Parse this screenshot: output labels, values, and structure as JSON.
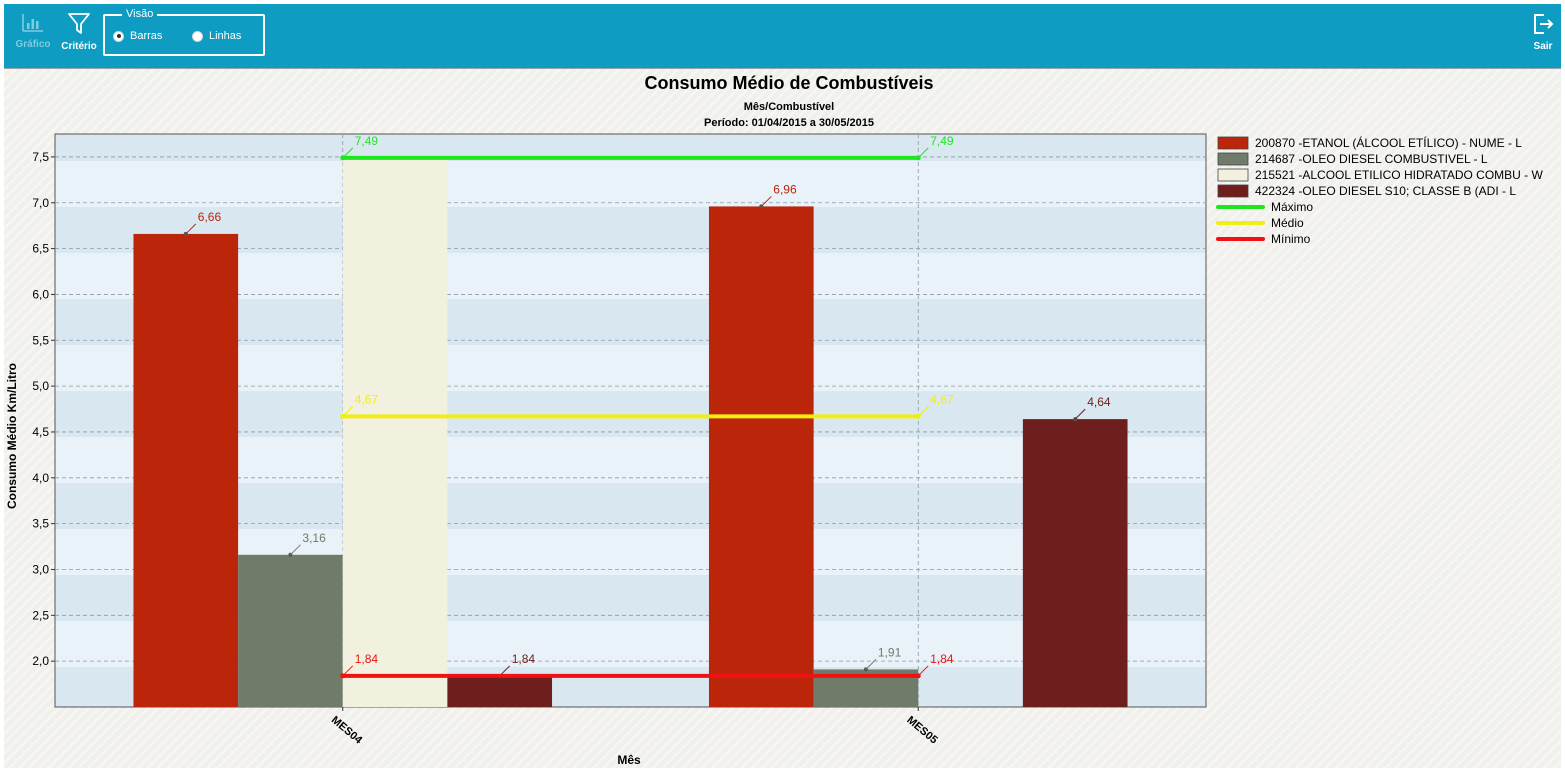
{
  "toolbar": {
    "grafico_label": "Gráfico",
    "criterio_label": "Critério",
    "sair_label": "Sair",
    "visao": {
      "legend": "Visão",
      "options": [
        {
          "label": "Barras",
          "selected": true
        },
        {
          "label": "Linhas",
          "selected": false
        }
      ]
    }
  },
  "chart_data": {
    "type": "bar",
    "title": "Consumo Médio de Combustíveis",
    "subtitle": "Mês/Combustível",
    "period": "Período: 01/04/2015 a 30/05/2015",
    "xlabel": "Mês",
    "ylabel": "Consumo Médio Km/Litro",
    "ylim": [
      1.5,
      7.75
    ],
    "yticks": [
      "2,0",
      "2,5",
      "3,0",
      "3,5",
      "4,0",
      "4,5",
      "5,0",
      "5,5",
      "6,0",
      "6,5",
      "7,0",
      "7,5"
    ],
    "categories": [
      "MES04",
      "MES05"
    ],
    "grid": true,
    "legend_position": "right",
    "series": [
      {
        "name": "200870 -ETANOL (ÁLCOOL ETÍLICO) - NUME - L",
        "color": "#bb2509",
        "values": [
          6.66,
          6.96
        ],
        "labels": [
          "6,66",
          "6,96"
        ]
      },
      {
        "name": "214687 -OLEO DIESEL COMBUSTIVEL - L",
        "color": "#707c69",
        "values": [
          3.16,
          1.91
        ],
        "labels": [
          "3,16",
          "1,91"
        ]
      },
      {
        "name": "215521 -ALCOOL ETILICO HIDRATADO COMBU - W",
        "color": "#f2f1e0",
        "values": [
          7.49,
          null
        ],
        "labels": [
          "",
          ""
        ]
      },
      {
        "name": "422324 -OLEO DIESEL S10; CLASSE B (ADI - L",
        "color": "#6e1e1c",
        "values": [
          1.84,
          4.64
        ],
        "labels": [
          "1,84",
          "4,64"
        ]
      }
    ],
    "reference_lines": [
      {
        "name": "Máximo",
        "color": "#1ee61e",
        "value": 7.49,
        "label": "7,49"
      },
      {
        "name": "Médio",
        "color": "#f0ee12",
        "value": 4.67,
        "label": "4,67"
      },
      {
        "name": "Mínimo",
        "color": "#f01212",
        "value": 1.84,
        "label": "1,84"
      }
    ]
  }
}
